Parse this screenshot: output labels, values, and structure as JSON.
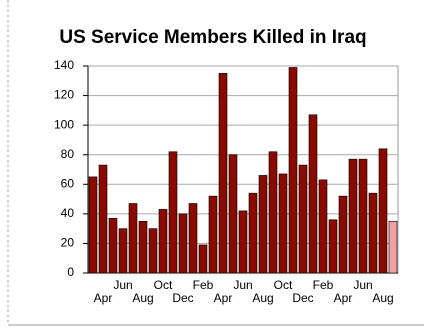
{
  "chart_data": {
    "type": "bar",
    "title": "US Service Members Killed in Iraq",
    "categories": [
      null,
      "Apr",
      null,
      "Jun",
      null,
      "Aug",
      null,
      "Oct",
      null,
      "Dec",
      null,
      "Feb",
      null,
      "Apr",
      null,
      "Jun",
      null,
      "Aug",
      null,
      "Oct",
      null,
      "Dec",
      null,
      "Feb",
      null,
      "Apr",
      null,
      "Jun",
      null,
      "Aug",
      null
    ],
    "values": [
      65,
      73,
      37,
      30,
      47,
      35,
      30,
      43,
      82,
      40,
      47,
      19,
      52,
      135,
      80,
      42,
      54,
      66,
      82,
      67,
      139,
      73,
      107,
      63,
      36,
      52,
      77,
      77,
      54,
      84,
      35
    ],
    "colors": [
      "#8b0a00",
      "#8b0a00",
      "#8b0a00",
      "#8b0a00",
      "#8b0a00",
      "#8b0a00",
      "#8b0a00",
      "#8b0a00",
      "#8b0a00",
      "#8b0a00",
      "#8b0a00",
      "#8b0a00",
      "#8b0a00",
      "#8b0a00",
      "#8b0a00",
      "#8b0a00",
      "#8b0a00",
      "#8b0a00",
      "#8b0a00",
      "#8b0a00",
      "#8b0a00",
      "#8b0a00",
      "#8b0a00",
      "#8b0a00",
      "#8b0a00",
      "#8b0a00",
      "#8b0a00",
      "#8b0a00",
      "#8b0a00",
      "#8b0a00",
      "#f0a0a0"
    ],
    "ylim": [
      0,
      140
    ],
    "yticks": [
      0,
      20,
      40,
      60,
      80,
      100,
      120,
      140
    ],
    "grid": true
  }
}
